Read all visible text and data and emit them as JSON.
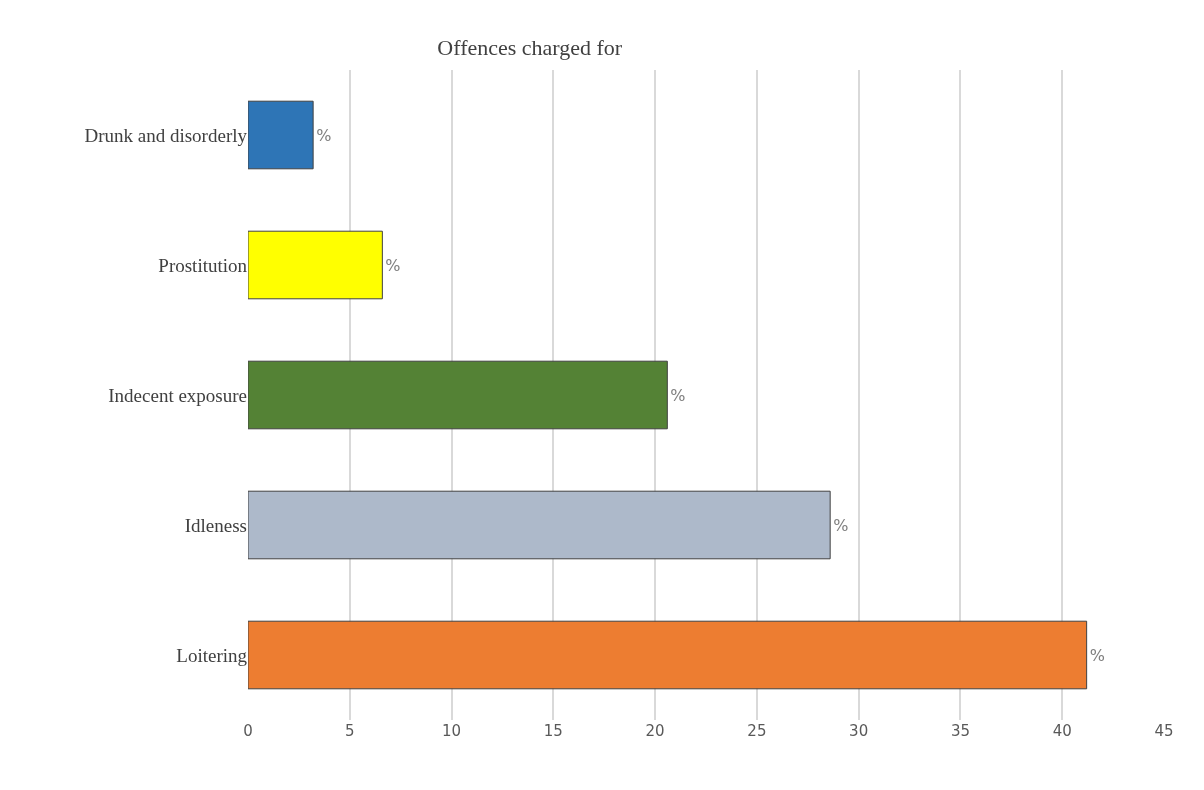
{
  "chart_data": {
    "type": "bar",
    "title": "Offences charged for",
    "orientation": "horizontal",
    "categories": [
      "Drunk and disorderly",
      "Prostitution",
      "Indecent exposure",
      "Idleness",
      "Loitering"
    ],
    "values": [
      3.2,
      6.6,
      20.6,
      28.6,
      41.2
    ],
    "colors": [
      "#2e75b6",
      "#ffff00",
      "#548235",
      "#adb9ca",
      "#ed7d31"
    ],
    "value_labels": [
      "%",
      "%",
      "%",
      "%",
      "%"
    ],
    "xlim": [
      0,
      45
    ],
    "xticks": [
      0,
      5,
      10,
      15,
      20,
      25,
      30,
      35,
      40,
      45
    ],
    "grid": "x"
  }
}
